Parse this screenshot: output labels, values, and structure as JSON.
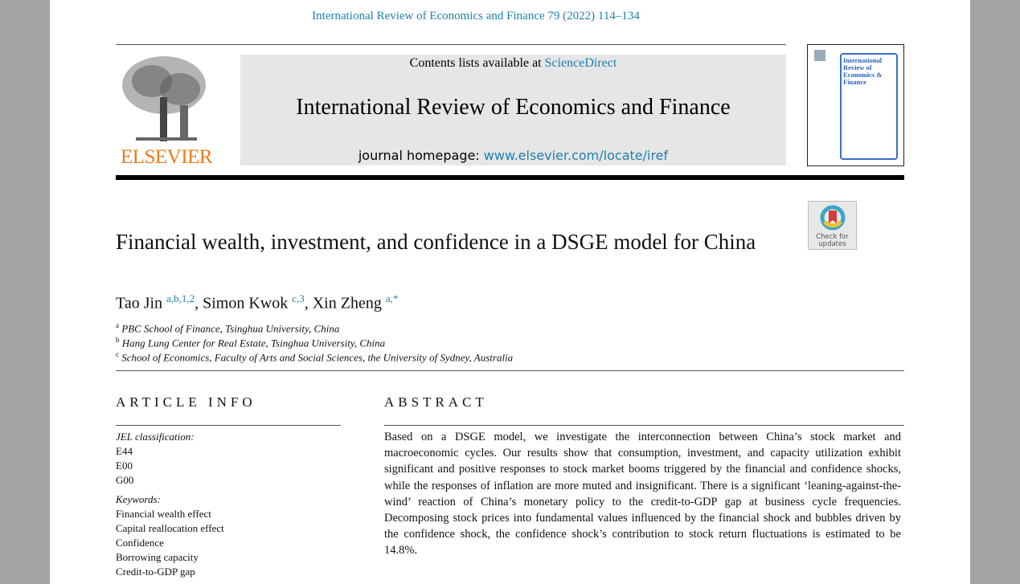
{
  "running_header": "International Review of Economics and Finance 79 (2022) 114–134",
  "publisher_logo": "ELSEVIER",
  "banner": {
    "contents_prefix": "Contents lists available at ",
    "contents_link": "ScienceDirect",
    "journal": "International Review of Economics and Finance",
    "homepage_prefix": "journal homepage: ",
    "homepage_link": "www.elsevier.com/locate/iref"
  },
  "cover": {
    "title": "International Review of Economics & Finance"
  },
  "check_updates": "Check for updates",
  "title": "Financial wealth, investment, and confidence in a DSGE model for China",
  "authors": [
    {
      "name": "Tao Jin",
      "sup": "a,b,1,2"
    },
    {
      "name": "Simon Kwok",
      "sup": "c,3"
    },
    {
      "name": "Xin Zheng",
      "sup": "a,*"
    }
  ],
  "affiliations": [
    {
      "mark": "a",
      "text": "PBC School of Finance, Tsinghua University, China"
    },
    {
      "mark": "b",
      "text": "Hang Lung Center for Real Estate, Tsinghua University, China"
    },
    {
      "mark": "c",
      "text": "School of Economics, Faculty of Arts and Social Sciences, the University of Sydney, Australia"
    }
  ],
  "article_info": {
    "heading": "ARTICLE INFO",
    "jel_label": "JEL classification:",
    "jel": [
      "E44",
      "E00",
      "G00"
    ],
    "keywords_label": "Keywords:",
    "keywords": [
      "Financial wealth effect",
      "Capital reallocation effect",
      "Confidence",
      "Borrowing capacity",
      "Credit-to-GDP gap"
    ]
  },
  "abstract": {
    "heading": "ABSTRACT",
    "text": "Based on a DSGE model, we investigate the interconnection between China’s stock market and macroeconomic cycles. Our results show that consumption, investment, and capacity utilization exhibit significant and positive responses to stock market booms triggered by the financial and confidence shocks, while the responses of inflation are more muted and insignificant. There is a significant ‘leaning-against-the-wind’ reaction of China’s monetary policy to the credit-to-GDP gap at business cycle frequencies. Decomposing stock prices into fundamental values influenced by the financial shock and bubbles driven by the confidence shock, the confidence shock’s contribution to stock return fluctuations is estimated to be 14.8%."
  }
}
